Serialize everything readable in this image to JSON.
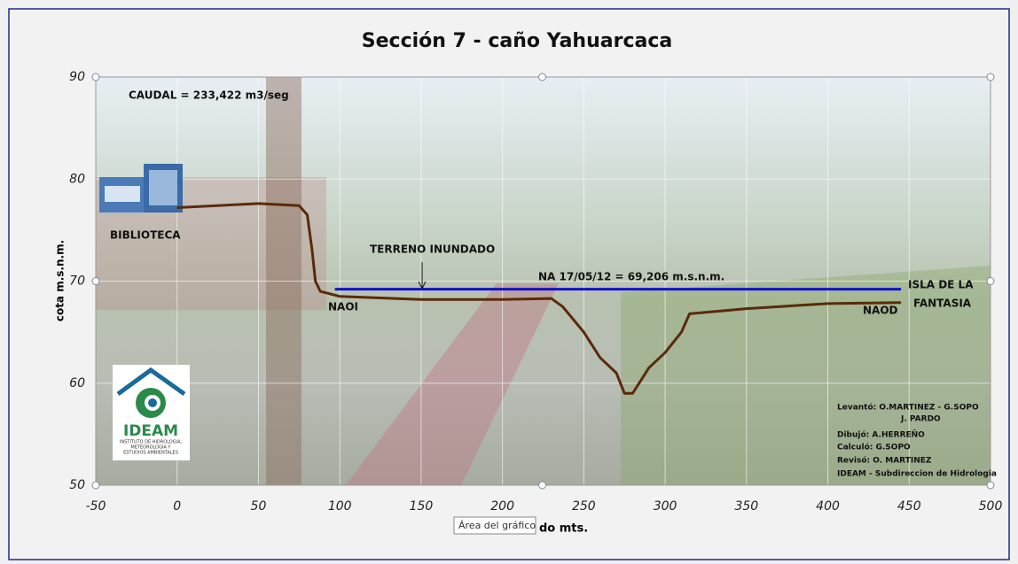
{
  "chart_data": {
    "type": "line",
    "title": "Sección 7 - caño Yahuarcaca",
    "x_label": "do mts.",
    "y_label": "cota m.s.n.m.",
    "tooltip": "Área del gráfico",
    "xlim": [
      -50,
      500
    ],
    "xticks": [
      -50,
      0,
      50,
      100,
      150,
      200,
      250,
      300,
      350,
      400,
      450,
      500
    ],
    "ylim": [
      50,
      90
    ],
    "yticks": [
      50,
      60,
      70,
      80,
      90
    ],
    "grid": true,
    "series": [
      {
        "color": "#5a2a0a",
        "x": [
          0,
          50,
          75,
          80,
          83,
          85,
          88,
          100,
          150,
          200,
          230,
          237,
          250,
          260,
          270,
          275,
          280,
          290,
          300,
          310,
          315,
          350,
          400,
          445
        ],
        "values": [
          77.2,
          77.6,
          77.4,
          76.5,
          73,
          70,
          69,
          68.5,
          68.2,
          68.2,
          68.3,
          67.5,
          65,
          62.5,
          61,
          59,
          59,
          61.5,
          63,
          65,
          66.8,
          67.3,
          67.8,
          67.9
        ]
      },
      {
        "color": "#1010cc",
        "x": [
          97,
          445
        ],
        "values": [
          69.206,
          69.206
        ]
      }
    ],
    "annotations": [
      "CAUDAL = 233,422 m3/seg",
      "BIBLIOTECA",
      "TERRENO INUNDADO",
      "NA 17/05/12 = 69,206 m.s.n.m.",
      "NAOI",
      "NAOD",
      "ISLA DE LA",
      "FANTASIA"
    ],
    "credits": [
      "Levantó: O.MARTINEZ  - G.SOPO",
      "J. PARDO",
      "Dibujó:   A.HERREÑO",
      "Calculó:  G.SOPO",
      "Revisó:   O. MARTINEZ",
      "IDEAM - Subdireccion de Hidrologia"
    ],
    "logo": {
      "name": "IDEAM",
      "text": [
        "INSTITUTO DE HIDROLOGIA,",
        "METEOROLOGIA Y",
        "ESTUDIOS AMBIENTALES"
      ]
    }
  }
}
